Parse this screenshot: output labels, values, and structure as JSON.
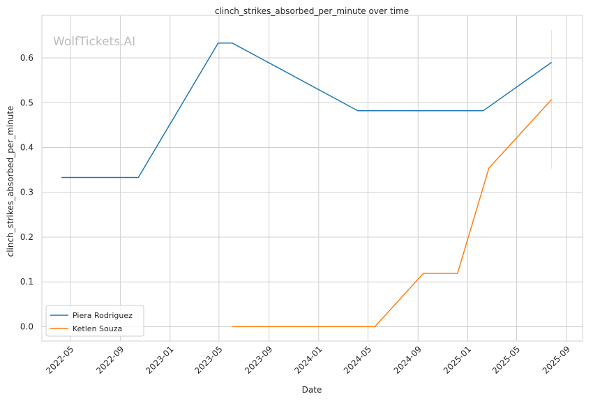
{
  "chart_data": {
    "type": "line",
    "title": "clinch_strikes_absorbed_per_minute over time",
    "xlabel": "Date",
    "ylabel": "clinch_strikes_absorbed_per_minute",
    "watermark": "WolfTickets.AI",
    "x_ticks": [
      "2022-05",
      "2022-09",
      "2023-01",
      "2023-05",
      "2023-09",
      "2024-01",
      "2024-05",
      "2024-09",
      "2025-01",
      "2025-05",
      "2025-09"
    ],
    "y_ticks": [
      "0.0",
      "0.1",
      "0.2",
      "0.3",
      "0.4",
      "0.5",
      "0.6"
    ],
    "ylim": [
      -0.032,
      0.695
    ],
    "xlim": [
      "2022-02-20",
      "2025-10-10"
    ],
    "grid": true,
    "legend_position": "lower-left",
    "series": [
      {
        "name": "Piera Rodriguez",
        "color": "#1f77b4",
        "points": [
          {
            "x": "2022-04-09",
            "y": 0.333
          },
          {
            "x": "2022-10-15",
            "y": 0.333
          },
          {
            "x": "2023-04-29",
            "y": 0.633
          },
          {
            "x": "2023-06-03",
            "y": 0.633
          },
          {
            "x": "2024-04-06",
            "y": 0.482
          },
          {
            "x": "2025-02-08",
            "y": 0.482
          },
          {
            "x": "2025-07-26",
            "y": 0.59
          }
        ]
      },
      {
        "name": "Ketlen Souza",
        "color": "#ff7f0e",
        "points": [
          {
            "x": "2023-06-03",
            "y": 0.0
          },
          {
            "x": "2024-05-18",
            "y": 0.0
          },
          {
            "x": "2024-09-14",
            "y": 0.119
          },
          {
            "x": "2024-12-07",
            "y": 0.119
          },
          {
            "x": "2025-02-22",
            "y": 0.354
          },
          {
            "x": "2025-07-26",
            "y": 0.507
          }
        ]
      }
    ],
    "error_band": {
      "x": "2025-07-26",
      "y_low": 0.352,
      "y_high": 0.662,
      "color": "#ff7f0e"
    }
  }
}
